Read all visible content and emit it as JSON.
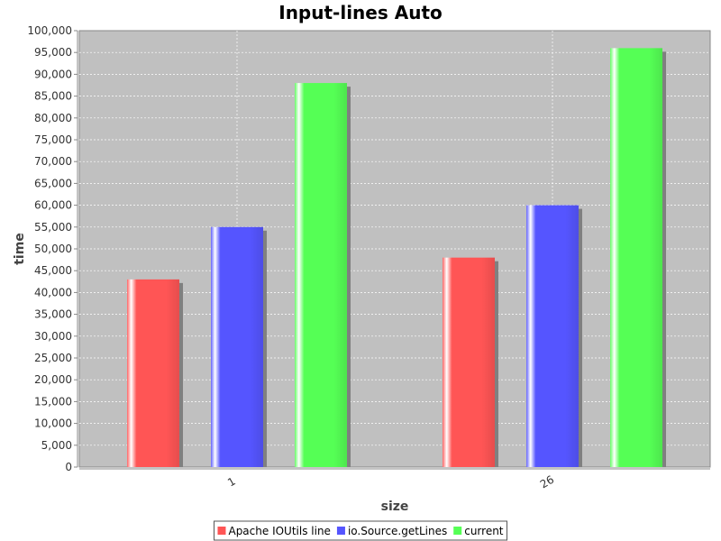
{
  "chart_data": {
    "type": "bar",
    "title": "Input-lines Auto",
    "xlabel": "size",
    "ylabel": "time",
    "categories": [
      "1",
      "26"
    ],
    "series": [
      {
        "name": "Apache IOUtils line",
        "color": "#ff5555",
        "values": [
          43000,
          48000
        ]
      },
      {
        "name": "io.Source.getLines",
        "color": "#5555ff",
        "values": [
          55000,
          60000
        ]
      },
      {
        "name": "current",
        "color": "#55ff55",
        "values": [
          88000,
          96000
        ]
      }
    ],
    "ylim": [
      0,
      100000
    ],
    "yticks": [
      "0",
      "5,000",
      "10,000",
      "15,000",
      "20,000",
      "25,000",
      "30,000",
      "35,000",
      "40,000",
      "45,000",
      "50,000",
      "55,000",
      "60,000",
      "65,000",
      "70,000",
      "75,000",
      "80,000",
      "85,000",
      "90,000",
      "95,000",
      "100,000"
    ],
    "grid": true,
    "legend": "bottom",
    "plot_background": "#c0c0c0"
  }
}
